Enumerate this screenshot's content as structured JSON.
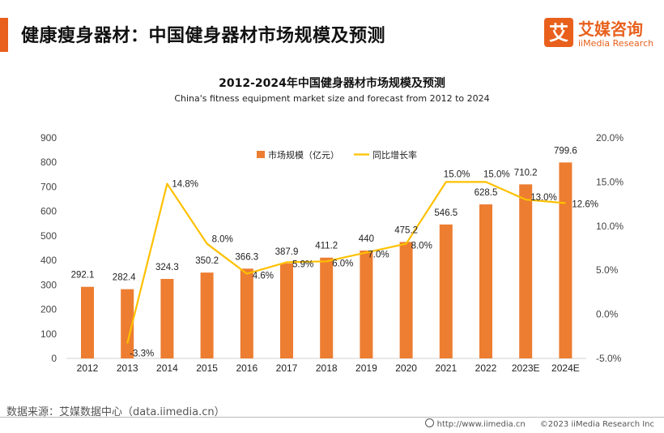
{
  "header": {
    "title": "健康瘦身器材：中国健身器材市场规模及预测"
  },
  "logo": {
    "mark": "艾",
    "name_cn": "艾媒咨询",
    "name_en": "iiMedia Research"
  },
  "chart_data": {
    "type": "bar+line",
    "title": "2012-2024年中国健身器材市场规模及预测",
    "subtitle": "China's fitness equipment market size and forecast from 2012 to 2024",
    "categories": [
      "2012",
      "2013",
      "2014",
      "2015",
      "2016",
      "2017",
      "2018",
      "2019",
      "2020",
      "2021",
      "2022",
      "2023E",
      "2024E"
    ],
    "series": [
      {
        "name": "市场规模（亿元）",
        "type": "bar",
        "axis": "left",
        "color": "#ed7d31",
        "values": [
          292.1,
          282.4,
          324.3,
          350.2,
          366.3,
          387.9,
          411.2,
          440,
          475.2,
          546.5,
          628.5,
          710.2,
          799.6
        ],
        "labels": [
          "292.1",
          "282.4",
          "324.3",
          "350.2",
          "366.3",
          "387.9",
          "411.2",
          "440",
          "475.2",
          "546.5",
          "628.5",
          "710.2",
          "799.6"
        ]
      },
      {
        "name": "同比增长率",
        "type": "line",
        "axis": "right",
        "color": "#ffc000",
        "values": [
          null,
          -3.3,
          14.8,
          8.0,
          4.6,
          5.9,
          6.0,
          7.0,
          8.0,
          15.0,
          15.0,
          13.0,
          12.6
        ],
        "labels": [
          null,
          "-3.3%",
          "14.8%",
          "8.0%",
          "4.6%",
          "5.9%",
          "6.0%",
          "7.0%",
          "8.0%",
          "15.0%",
          "15.0%",
          "13.0%",
          "12.6%"
        ]
      }
    ],
    "y_left": {
      "min": 0,
      "max": 900,
      "ticks": [
        0,
        100,
        200,
        300,
        400,
        500,
        600,
        700,
        800,
        900
      ]
    },
    "y_right": {
      "min": -5,
      "max": 20,
      "ticks": [
        -5,
        0,
        5,
        10,
        15,
        20
      ],
      "tick_labels": [
        "-5.0%",
        "0.0%",
        "5.0%",
        "10.0%",
        "15.0%",
        "20.0%"
      ]
    },
    "legend_position": "top-center",
    "grid": false
  },
  "footer": {
    "source": "数据来源：艾媒数据中心（data.iimedia.cn）",
    "url": "http://www.iimedia.cn",
    "copyright": "©2023  iiMedia Research  Inc"
  }
}
